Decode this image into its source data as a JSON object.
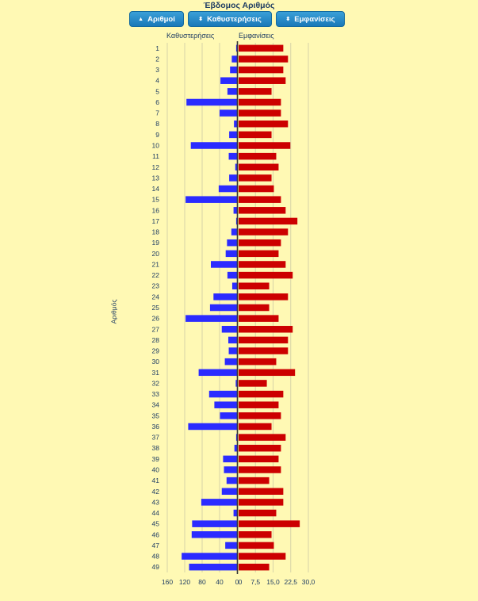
{
  "title": "Έβδομος Αριθμός",
  "buttons": [
    {
      "label": "Αριθμοί",
      "icon": "triangle-up-icon"
    },
    {
      "label": "Καθυστερήσεις",
      "icon": "sort-icon"
    },
    {
      "label": "Εμφανίσεις",
      "icon": "sort-icon"
    }
  ],
  "chart_data": {
    "type": "bar",
    "orientation": "horizontal-back-to-back",
    "ylabel": "Αριθμός",
    "categories": [
      "1",
      "2",
      "3",
      "4",
      "5",
      "6",
      "7",
      "8",
      "9",
      "10",
      "11",
      "12",
      "13",
      "14",
      "15",
      "16",
      "17",
      "18",
      "19",
      "20",
      "21",
      "22",
      "23",
      "24",
      "25",
      "26",
      "27",
      "28",
      "29",
      "30",
      "31",
      "32",
      "33",
      "34",
      "35",
      "36",
      "37",
      "38",
      "39",
      "40",
      "41",
      "42",
      "43",
      "44",
      "45",
      "46",
      "47",
      "48",
      "49"
    ],
    "left": {
      "name": "Καθυστερήσεις",
      "color": "#2b2bff",
      "xlim": [
        160,
        0
      ],
      "ticks": [
        "160",
        "120",
        "80",
        "40",
        "0"
      ],
      "values": [
        2,
        12,
        16,
        38,
        22,
        116,
        40,
        7,
        18,
        106,
        19,
        4,
        18,
        42,
        118,
        8,
        2,
        13,
        23,
        26,
        60,
        22,
        11,
        54,
        62,
        118,
        35,
        20,
        19,
        28,
        88,
        3,
        64,
        52,
        39,
        112,
        2,
        6,
        32,
        30,
        24,
        35,
        82,
        8,
        103,
        104,
        27,
        127,
        110
      ]
    },
    "right": {
      "name": "Εμφανίσεις",
      "color": "#cc0000",
      "xlim": [
        0,
        30
      ],
      "ticks": [
        "0",
        "7,5",
        "15,0",
        "22,5",
        "30,0"
      ],
      "values": [
        19,
        21,
        19,
        20,
        14,
        18,
        18,
        21,
        14,
        22,
        16,
        17,
        14,
        15,
        18,
        20,
        25,
        21,
        18,
        17,
        20,
        23,
        13,
        21,
        13,
        17,
        23,
        21,
        21,
        16,
        24,
        12,
        19,
        17,
        18,
        14,
        20,
        18,
        17,
        18,
        13,
        19,
        19,
        16,
        26,
        14,
        15,
        20,
        13
      ]
    },
    "grid": true
  }
}
